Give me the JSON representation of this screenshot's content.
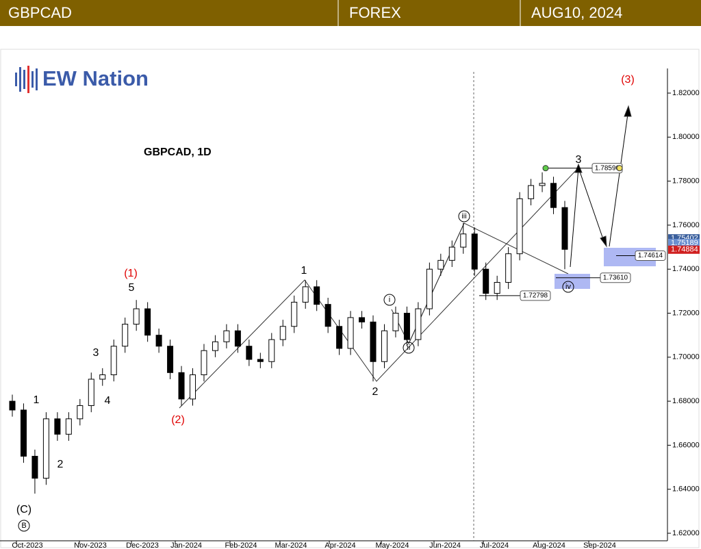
{
  "header": {
    "symbol": "GBPCAD",
    "market": "FOREX",
    "date": "AUG10, 2024"
  },
  "logo": {
    "text": "EW Nation"
  },
  "chart_data": {
    "type": "candlestick",
    "title": "GBPCAD, 1D",
    "x_labels": [
      "Oct-2023",
      "Nov-2023",
      "Dec-2023",
      "Jan-2024",
      "Feb-2024",
      "Mar-2024",
      "Apr-2024",
      "May-2024",
      "Jun-2024",
      "Jul-2024",
      "Aug-2024",
      "Sep-2024"
    ],
    "open": [
      1.68,
      1.676,
      1.655,
      1.645,
      1.672,
      1.665,
      1.672,
      1.678,
      1.69,
      1.692,
      1.705,
      1.715,
      1.722,
      1.71,
      1.705,
      1.693,
      1.681,
      1.692,
      1.703,
      1.707,
      1.712,
      1.705,
      1.699,
      1.698,
      1.708,
      1.714,
      1.725,
      1.732,
      1.724,
      1.714,
      1.704,
      1.718,
      1.716,
      1.698,
      1.712,
      1.72,
      1.708,
      1.722,
      1.74,
      1.744,
      1.75,
      1.756,
      1.74,
      1.729,
      1.734,
      1.747,
      1.772,
      1.778,
      1.779,
      1.768
    ],
    "high": [
      1.683,
      1.679,
      1.658,
      1.675,
      1.675,
      1.675,
      1.681,
      1.693,
      1.695,
      1.708,
      1.718,
      1.726,
      1.725,
      1.713,
      1.708,
      1.696,
      1.695,
      1.706,
      1.71,
      1.715,
      1.715,
      1.708,
      1.702,
      1.711,
      1.717,
      1.728,
      1.735,
      1.735,
      1.727,
      1.717,
      1.721,
      1.721,
      1.719,
      1.715,
      1.723,
      1.723,
      1.725,
      1.743,
      1.747,
      1.753,
      1.761,
      1.759,
      1.743,
      1.737,
      1.75,
      1.775,
      1.781,
      1.784,
      1.782,
      1.771
    ],
    "low": [
      1.673,
      1.652,
      1.638,
      1.642,
      1.662,
      1.662,
      1.669,
      1.675,
      1.687,
      1.689,
      1.702,
      1.712,
      1.707,
      1.702,
      1.69,
      1.678,
      1.678,
      1.689,
      1.7,
      1.704,
      1.702,
      1.696,
      1.695,
      1.695,
      1.705,
      1.711,
      1.722,
      1.721,
      1.711,
      1.701,
      1.701,
      1.713,
      1.689,
      1.695,
      1.709,
      1.705,
      1.705,
      1.719,
      1.737,
      1.741,
      1.747,
      1.737,
      1.726,
      1.726,
      1.731,
      1.744,
      1.769,
      1.775,
      1.765,
      1.74
    ],
    "close": [
      1.676,
      1.655,
      1.645,
      1.672,
      1.665,
      1.672,
      1.678,
      1.69,
      1.692,
      1.705,
      1.715,
      1.722,
      1.71,
      1.705,
      1.693,
      1.681,
      1.692,
      1.703,
      1.707,
      1.712,
      1.705,
      1.699,
      1.698,
      1.708,
      1.714,
      1.725,
      1.732,
      1.724,
      1.714,
      1.704,
      1.718,
      1.716,
      1.698,
      1.712,
      1.72,
      1.708,
      1.722,
      1.74,
      1.744,
      1.75,
      1.756,
      1.74,
      1.729,
      1.734,
      1.747,
      1.772,
      1.778,
      1.779,
      1.768,
      1.749
    ],
    "up_color": "#ffffff",
    "down_color": "#000000",
    "ylim": [
      1.62,
      1.83
    ],
    "yticks": [
      {
        "value": 1.62,
        "label": "1.62000"
      },
      {
        "value": 1.64,
        "label": "1.64000"
      },
      {
        "value": 1.66,
        "label": "1.66000"
      },
      {
        "value": 1.68,
        "label": "1.68000"
      },
      {
        "value": 1.7,
        "label": "1.70000"
      },
      {
        "value": 1.72,
        "label": "1.72000"
      },
      {
        "value": 1.74,
        "label": "1.74000"
      },
      {
        "value": 1.76,
        "label": "1.76000"
      },
      {
        "value": 1.78,
        "label": "1.78000"
      },
      {
        "value": 1.8,
        "label": "1.80000"
      },
      {
        "value": 1.82,
        "label": "1.82000"
      }
    ],
    "price_tags": [
      {
        "value": 1.75402,
        "label": "1.75402",
        "color": "#3a5f9c"
      },
      {
        "value": 1.75189,
        "label": "1.75189",
        "color": "#6a8fd0"
      },
      {
        "value": 1.74884,
        "label": "1.74884",
        "color": "#d02020"
      }
    ],
    "price_labels": [
      {
        "value": 1.7859,
        "label": "1.78590"
      },
      {
        "value": 1.74614,
        "label": "1.74614"
      },
      {
        "value": 1.7361,
        "label": "1.73610"
      },
      {
        "value": 1.72798,
        "label": "1.72798"
      }
    ],
    "wave_labels": [
      {
        "text": "(C)",
        "color": "#000000"
      },
      {
        "text": "B",
        "color": "#000000"
      },
      {
        "text": "1",
        "color": "#000000"
      },
      {
        "text": "2",
        "color": "#000000"
      },
      {
        "text": "3",
        "color": "#000000"
      },
      {
        "text": "4",
        "color": "#000000"
      },
      {
        "text": "5",
        "color": "#000000"
      },
      {
        "text": "(1)",
        "color": "#e00000"
      },
      {
        "text": "(2)",
        "color": "#e00000"
      },
      {
        "text": "1",
        "color": "#000000"
      },
      {
        "text": "2",
        "color": "#000000"
      },
      {
        "text": "i",
        "color": "#000000"
      },
      {
        "text": "ii",
        "color": "#000000"
      },
      {
        "text": "iii",
        "color": "#000000"
      },
      {
        "text": "iv",
        "color": "#000000"
      },
      {
        "text": "3",
        "color": "#000000"
      },
      {
        "text": "(3)",
        "color": "#e00000"
      }
    ]
  }
}
